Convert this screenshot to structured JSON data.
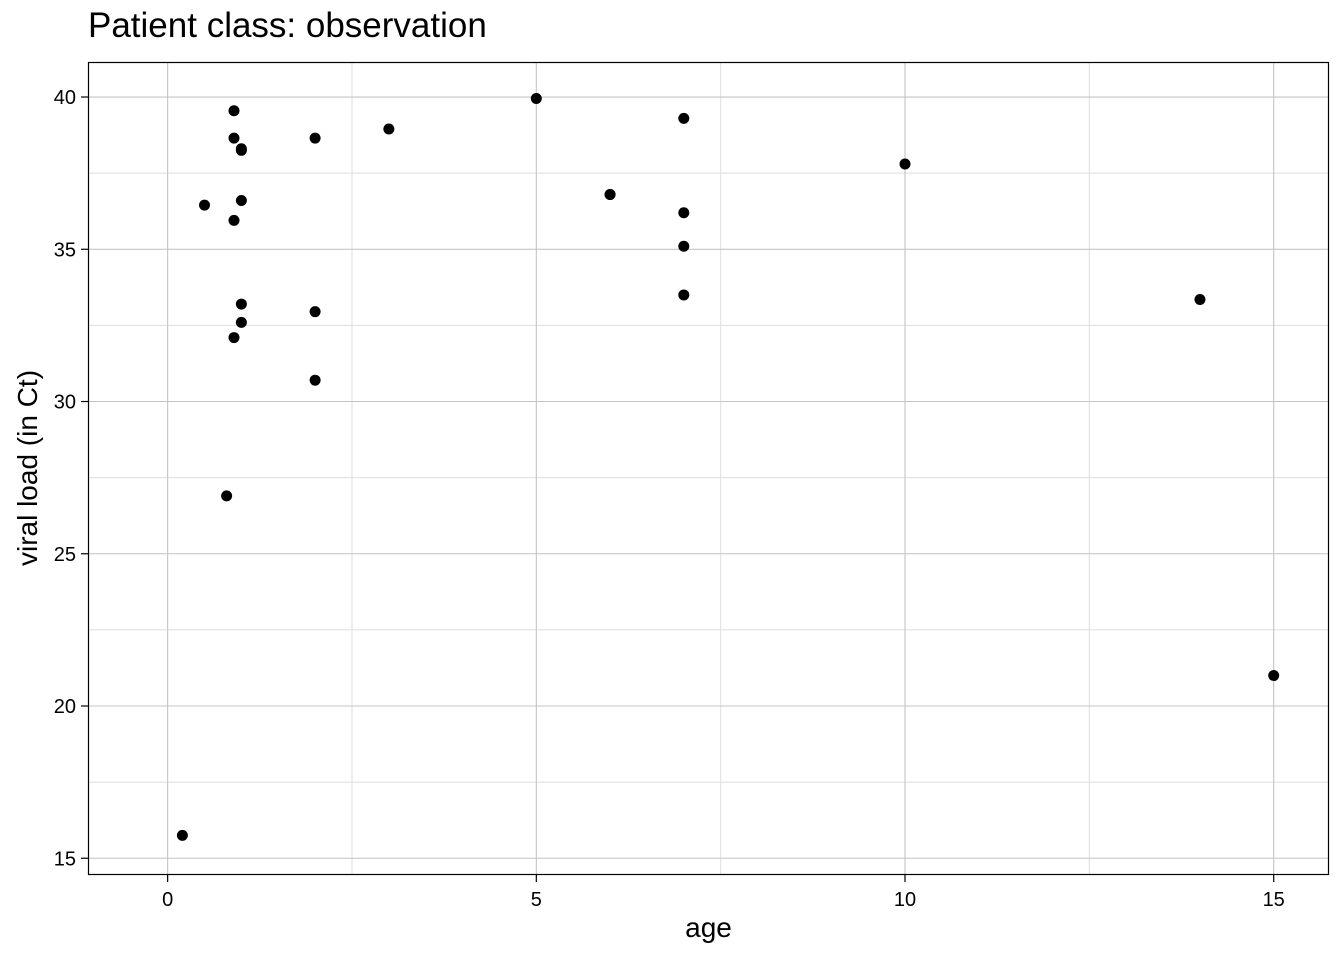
{
  "chart_data": {
    "type": "scatter",
    "title": "Patient class: observation",
    "xlabel": "age",
    "ylabel": "viral load (in Ct)",
    "xlim": [
      -1.08,
      15.75
    ],
    "ylim": [
      14.45,
      41.15
    ],
    "x_ticks": [
      0,
      5,
      10,
      15
    ],
    "y_ticks": [
      15,
      20,
      25,
      30,
      35,
      40
    ],
    "x_tick_labels": [
      "0",
      "5",
      "10",
      "15"
    ],
    "y_tick_labels": [
      "15",
      "20",
      "25",
      "30",
      "35",
      "40"
    ],
    "grid": true,
    "points": [
      {
        "x": 0.2,
        "y": 15.75
      },
      {
        "x": 0.5,
        "y": 36.45
      },
      {
        "x": 0.8,
        "y": 26.9
      },
      {
        "x": 0.9,
        "y": 39.55
      },
      {
        "x": 0.9,
        "y": 38.65
      },
      {
        "x": 0.9,
        "y": 35.95
      },
      {
        "x": 0.9,
        "y": 32.1
      },
      {
        "x": 1.0,
        "y": 38.3
      },
      {
        "x": 1.0,
        "y": 38.25
      },
      {
        "x": 1.0,
        "y": 36.6
      },
      {
        "x": 1.0,
        "y": 33.2
      },
      {
        "x": 1.0,
        "y": 32.6
      },
      {
        "x": 2.0,
        "y": 38.65
      },
      {
        "x": 2.0,
        "y": 32.95
      },
      {
        "x": 2.0,
        "y": 30.7
      },
      {
        "x": 3.0,
        "y": 38.95
      },
      {
        "x": 5.0,
        "y": 39.95
      },
      {
        "x": 6.0,
        "y": 36.8
      },
      {
        "x": 6.0,
        "y": 36.8
      },
      {
        "x": 7.0,
        "y": 39.3
      },
      {
        "x": 7.0,
        "y": 36.2
      },
      {
        "x": 7.0,
        "y": 35.1
      },
      {
        "x": 7.0,
        "y": 33.5
      },
      {
        "x": 10.0,
        "y": 37.8
      },
      {
        "x": 14.0,
        "y": 33.35
      },
      {
        "x": 15.0,
        "y": 21.0
      }
    ]
  }
}
